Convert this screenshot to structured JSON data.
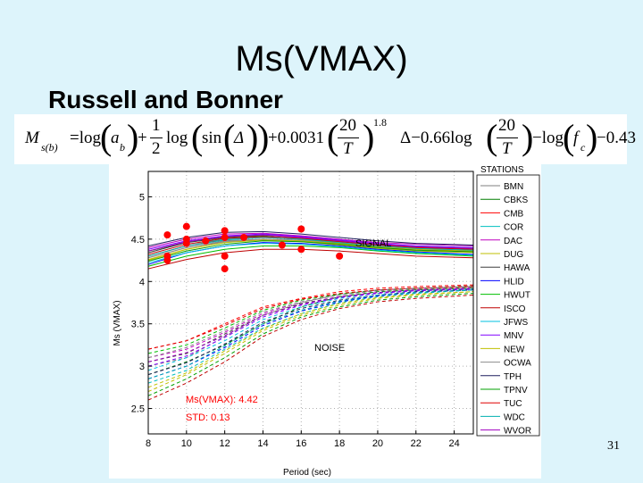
{
  "slide": {
    "title": "Ms(VMAX)",
    "subtitle": "Russell and Bonner",
    "page_number": "31"
  },
  "formula": {
    "lhs": "M",
    "lhs_sub": "s(b)",
    "eq": "=log",
    "term1": "a",
    "term1_sub": "b",
    "plus1": "+",
    "half_num": "1",
    "half_den": "2",
    "log_sin": "log",
    "sin": "sin",
    "delta": "Δ",
    "plus_coef": "+0.0031",
    "frac1_num": "20",
    "frac1_den": "T",
    "exponent": "1.8",
    "minus_coef": "Δ−0.66log",
    "frac2_num": "20",
    "frac2_den": "T",
    "minus_log": "−log",
    "fc": "f",
    "fc_sub": "c",
    "tail": "−0.43"
  },
  "chart_data": {
    "type": "line",
    "xlabel": "Period (sec)",
    "ylabel": "Ms (VMAX)",
    "xlim": [
      8,
      25
    ],
    "ylim": [
      2.2,
      5.3
    ],
    "xticks": [
      8,
      10,
      12,
      14,
      16,
      18,
      20,
      22,
      24
    ],
    "yticks": [
      2.5,
      3,
      3.5,
      4,
      4.5,
      5
    ],
    "grid": true,
    "legend_title": "STATIONS",
    "legend_placement": "right",
    "annotations": {
      "signal": "SIGNAL",
      "noise": "NOISE",
      "ms_vmax": "Ms(VMAX): 4.42",
      "std": "STD: 0.13"
    },
    "signal_x": [
      8,
      10,
      12,
      14,
      16,
      18,
      20,
      22,
      25
    ],
    "noise_x": [
      8,
      10,
      12,
      14,
      16,
      18,
      20,
      22,
      25
    ],
    "series": [
      {
        "name": "BMN",
        "color": "#7f7f7f",
        "signal": [
          4.28,
          4.4,
          4.48,
          4.5,
          4.48,
          4.45,
          4.42,
          4.4,
          4.36
        ],
        "noise": [
          3.0,
          3.1,
          3.35,
          3.6,
          3.75,
          3.85,
          3.9,
          3.92,
          3.95
        ]
      },
      {
        "name": "CBKS",
        "color": "#007f00",
        "signal": [
          4.36,
          4.46,
          4.52,
          4.54,
          4.5,
          4.47,
          4.43,
          4.4,
          4.38
        ],
        "noise": [
          2.9,
          3.05,
          3.25,
          3.5,
          3.7,
          3.82,
          3.88,
          3.9,
          3.92
        ]
      },
      {
        "name": "CMB",
        "color": "#ff0000",
        "signal": [
          4.3,
          4.42,
          4.5,
          4.52,
          4.5,
          4.45,
          4.4,
          4.38,
          4.35
        ],
        "noise": [
          3.2,
          3.3,
          3.5,
          3.7,
          3.8,
          3.88,
          3.92,
          3.94,
          3.96
        ]
      },
      {
        "name": "COR",
        "color": "#00bfbf",
        "signal": [
          4.32,
          4.44,
          4.5,
          4.53,
          4.51,
          4.48,
          4.44,
          4.42,
          4.4
        ],
        "noise": [
          2.8,
          2.95,
          3.2,
          3.45,
          3.62,
          3.75,
          3.82,
          3.86,
          3.9
        ]
      },
      {
        "name": "DAC",
        "color": "#bf00bf",
        "signal": [
          4.4,
          4.5,
          4.56,
          4.57,
          4.54,
          4.5,
          4.46,
          4.44,
          4.42
        ],
        "noise": [
          3.1,
          3.2,
          3.4,
          3.62,
          3.76,
          3.84,
          3.9,
          3.92,
          3.94
        ]
      },
      {
        "name": "DUG",
        "color": "#bfbf00",
        "signal": [
          4.25,
          4.38,
          4.46,
          4.49,
          4.47,
          4.43,
          4.39,
          4.36,
          4.34
        ],
        "noise": [
          2.7,
          2.9,
          3.15,
          3.42,
          3.6,
          3.72,
          3.8,
          3.84,
          3.88
        ]
      },
      {
        "name": "HAWA",
        "color": "#3f3f3f",
        "signal": [
          4.34,
          4.46,
          4.52,
          4.55,
          4.52,
          4.48,
          4.44,
          4.41,
          4.39
        ],
        "noise": [
          3.05,
          3.15,
          3.38,
          3.6,
          3.74,
          3.82,
          3.87,
          3.9,
          3.92
        ]
      },
      {
        "name": "HLID",
        "color": "#0000ff",
        "signal": [
          4.2,
          4.34,
          4.42,
          4.46,
          4.45,
          4.42,
          4.38,
          4.35,
          4.32
        ],
        "noise": [
          2.85,
          3.0,
          3.22,
          3.48,
          3.65,
          3.76,
          3.83,
          3.87,
          3.9
        ]
      },
      {
        "name": "HWUT",
        "color": "#00bf00",
        "signal": [
          4.18,
          4.3,
          4.38,
          4.42,
          4.42,
          4.4,
          4.36,
          4.33,
          4.3
        ],
        "noise": [
          3.15,
          3.25,
          3.45,
          3.66,
          3.78,
          3.85,
          3.9,
          3.92,
          3.94
        ]
      },
      {
        "name": "ISCO",
        "color": "#bf0000",
        "signal": [
          4.15,
          4.26,
          4.34,
          4.38,
          4.38,
          4.36,
          4.33,
          4.3,
          4.28
        ],
        "noise": [
          2.6,
          2.8,
          3.05,
          3.35,
          3.55,
          3.68,
          3.76,
          3.8,
          3.84
        ]
      },
      {
        "name": "JFWS",
        "color": "#00c0e0",
        "signal": [
          4.22,
          4.34,
          4.42,
          4.45,
          4.44,
          4.41,
          4.37,
          4.34,
          4.31
        ],
        "noise": [
          2.95,
          3.1,
          3.3,
          3.55,
          3.7,
          3.8,
          3.86,
          3.89,
          3.91
        ]
      },
      {
        "name": "MNV",
        "color": "#8000ff",
        "signal": [
          4.38,
          4.48,
          4.54,
          4.56,
          4.53,
          4.49,
          4.45,
          4.42,
          4.4
        ],
        "noise": [
          3.0,
          3.12,
          3.34,
          3.58,
          3.72,
          3.81,
          3.86,
          3.89,
          3.91
        ]
      },
      {
        "name": "NEW",
        "color": "#c0c000",
        "signal": [
          4.26,
          4.38,
          4.46,
          4.5,
          4.48,
          4.45,
          4.41,
          4.38,
          4.36
        ],
        "noise": [
          2.75,
          2.92,
          3.18,
          3.44,
          3.62,
          3.74,
          3.81,
          3.85,
          3.88
        ]
      },
      {
        "name": "OCWA",
        "color": "#8c8c8c",
        "signal": [
          4.28,
          4.4,
          4.47,
          4.5,
          4.49,
          4.46,
          4.42,
          4.39,
          4.37
        ],
        "noise": [
          3.1,
          3.22,
          3.42,
          3.64,
          3.76,
          3.84,
          3.89,
          3.91,
          3.93
        ]
      },
      {
        "name": "TPH",
        "color": "#1f1f5f",
        "signal": [
          4.42,
          4.52,
          4.58,
          4.59,
          4.56,
          4.52,
          4.48,
          4.45,
          4.43
        ],
        "noise": [
          2.9,
          3.04,
          3.26,
          3.52,
          3.68,
          3.78,
          3.84,
          3.88,
          3.9
        ]
      },
      {
        "name": "TPNV",
        "color": "#00a000",
        "signal": [
          4.24,
          4.36,
          4.44,
          4.48,
          4.47,
          4.44,
          4.4,
          4.37,
          4.35
        ],
        "noise": [
          2.65,
          2.85,
          3.1,
          3.38,
          3.58,
          3.7,
          3.78,
          3.82,
          3.86
        ]
      },
      {
        "name": "TUC",
        "color": "#e00000",
        "signal": [
          4.32,
          4.44,
          4.51,
          4.53,
          4.51,
          4.47,
          4.43,
          4.4,
          4.38
        ],
        "noise": [
          3.2,
          3.3,
          3.48,
          3.68,
          3.79,
          3.86,
          3.9,
          3.92,
          3.94
        ]
      },
      {
        "name": "WDC",
        "color": "#00b0b0",
        "signal": [
          4.3,
          4.42,
          4.49,
          4.52,
          4.5,
          4.46,
          4.42,
          4.39,
          4.37
        ],
        "noise": [
          2.85,
          3.0,
          3.24,
          3.5,
          3.66,
          3.77,
          3.84,
          3.87,
          3.9
        ]
      },
      {
        "name": "WVOR",
        "color": "#a000c0",
        "signal": [
          4.36,
          4.47,
          4.53,
          4.55,
          4.52,
          4.48,
          4.44,
          4.41,
          4.39
        ],
        "noise": [
          3.05,
          3.16,
          3.36,
          3.6,
          3.73,
          3.82,
          3.87,
          3.9,
          3.92
        ]
      }
    ],
    "ms_points": {
      "color": "#ff0000",
      "x": [
        9,
        9,
        9,
        10,
        10,
        10,
        11,
        12,
        12,
        12,
        12,
        13,
        15,
        16,
        16,
        18
      ],
      "y": [
        4.55,
        4.3,
        4.25,
        4.65,
        4.5,
        4.45,
        4.48,
        4.6,
        4.52,
        4.3,
        4.15,
        4.52,
        4.43,
        4.62,
        4.38,
        4.3
      ]
    }
  }
}
